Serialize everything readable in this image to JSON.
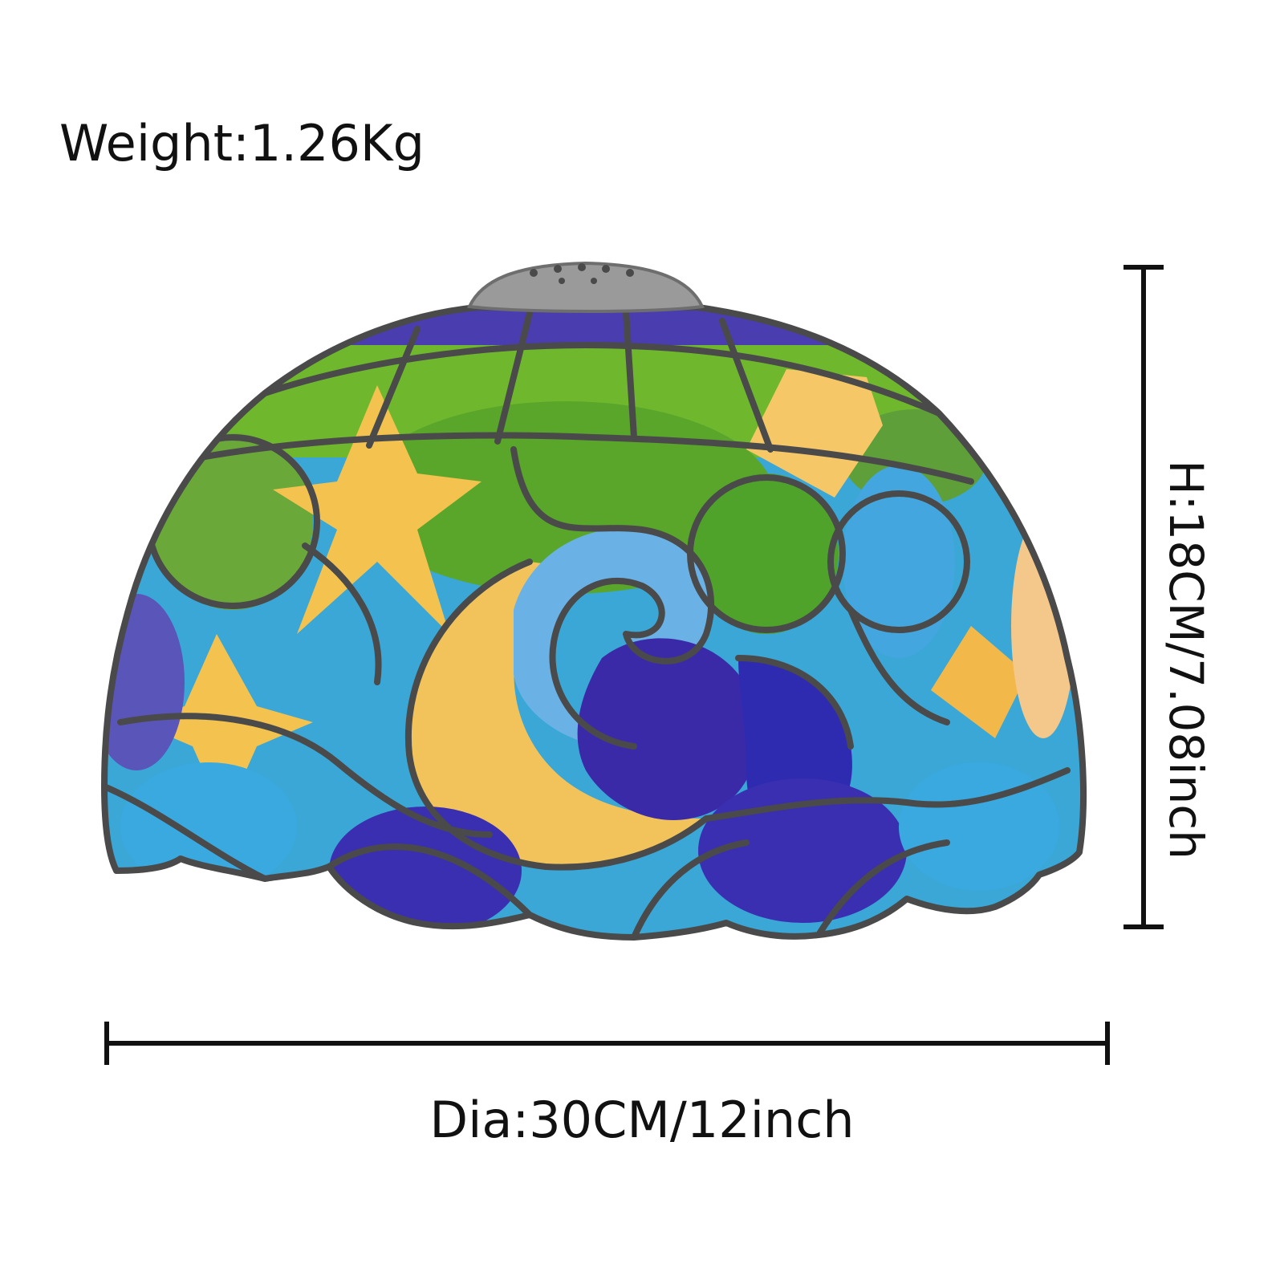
{
  "labels": {
    "weight": "Weight:1.26Kg",
    "height": "H:18CM/7.08inch",
    "diameter": "Dia:30CM/12inch"
  },
  "colors": {
    "came": "#4a4a4a",
    "yellow": "#f3c24f",
    "green": "#6bb52c",
    "cyan": "#3aa7d6",
    "blue": "#2f3fc1",
    "indigo": "#3b2aa8",
    "silver": "#9a9a9a"
  }
}
